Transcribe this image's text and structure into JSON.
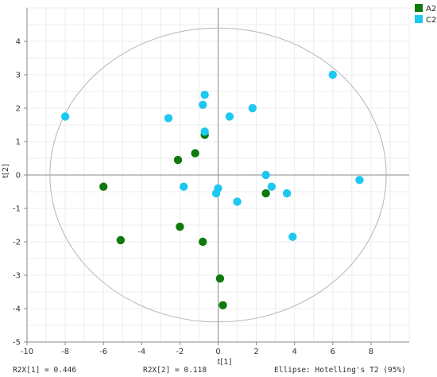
{
  "chart_data": {
    "type": "scatter",
    "xlabel": "t[1]",
    "ylabel": "t[2]",
    "xlim": [
      -10,
      10
    ],
    "ylim": [
      -5,
      5
    ],
    "x_ticks": [
      -10,
      -8,
      -6,
      -4,
      -2,
      0,
      2,
      4,
      6,
      8
    ],
    "y_ticks": [
      -5,
      -4,
      -3,
      -2,
      -1,
      0,
      1,
      2,
      3,
      4
    ],
    "grid": true,
    "legend_position": "top-right",
    "ellipse": {
      "rx": 8.8,
      "ry": 4.4,
      "color": "#b5b5b5"
    },
    "series": [
      {
        "name": "A2",
        "color": "#0e7a0e",
        "points": [
          [
            -6.0,
            -0.35
          ],
          [
            -5.1,
            -1.95
          ],
          [
            -2.1,
            0.45
          ],
          [
            -2.0,
            -1.55
          ],
          [
            -1.2,
            0.65
          ],
          [
            -0.7,
            1.2
          ],
          [
            -0.8,
            -2.0
          ],
          [
            0.1,
            -3.1
          ],
          [
            0.25,
            -3.9
          ],
          [
            2.5,
            -0.55
          ]
        ]
      },
      {
        "name": "C2",
        "color": "#1ec8f0",
        "points": [
          [
            -8.0,
            1.75
          ],
          [
            -2.6,
            1.7
          ],
          [
            -0.8,
            2.1
          ],
          [
            -0.7,
            2.4
          ],
          [
            -0.7,
            1.3
          ],
          [
            0.6,
            1.75
          ],
          [
            1.8,
            2.0
          ],
          [
            -1.8,
            -0.35
          ],
          [
            0.0,
            -0.4
          ],
          [
            -0.1,
            -0.55
          ],
          [
            1.0,
            -0.8
          ],
          [
            2.5,
            0.0
          ],
          [
            2.8,
            -0.35
          ],
          [
            3.6,
            -0.55
          ],
          [
            3.9,
            -1.85
          ],
          [
            6.0,
            3.0
          ],
          [
            7.4,
            -0.15
          ]
        ]
      }
    ]
  },
  "footer": {
    "r2x1": "R2X[1] = 0.446",
    "r2x2": "R2X[2] = 0.118",
    "ellipse_label": "Ellipse: Hotelling's T2 (95%)"
  }
}
